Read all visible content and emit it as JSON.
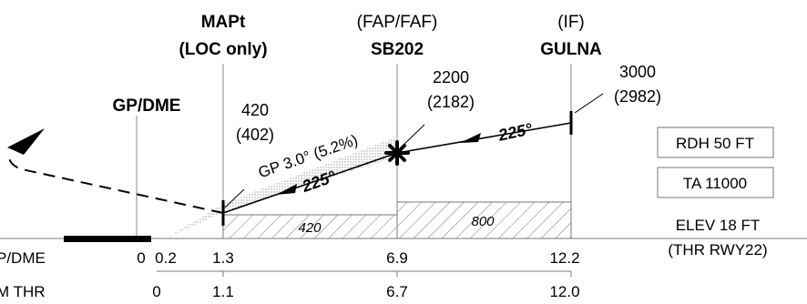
{
  "fixes": {
    "mapt": {
      "title": "MAPt",
      "subtitle": "(LOC only)",
      "alt": "420",
      "alt_hat": "(402)"
    },
    "faf": {
      "role": "(FAP/FAF)",
      "name": "SB202",
      "alt": "2200",
      "alt_hat": "(2182)"
    },
    "if": {
      "role": "(IF)",
      "name": "GULNA",
      "alt": "3000",
      "alt_hat": "(2982)"
    },
    "gp_dme": {
      "label": "GP/DME"
    }
  },
  "glidepath": {
    "label": "GP 3.0° (5.2%)",
    "course_final": "225°",
    "course_intermediate": "225°"
  },
  "minimum_altitudes": [
    "420",
    "800"
  ],
  "info_boxes": {
    "rdh": "RDH 50 FT",
    "ta": "TA 11000"
  },
  "elevation": {
    "elev": "ELEV 18 FT",
    "thr": "(THR RWY22)"
  },
  "distance_scales": {
    "gp_dme": {
      "label": "P/DME",
      "values": [
        "0",
        "0.2",
        "1.3",
        "6.9",
        "12.2"
      ]
    },
    "thr": {
      "label": "M THR",
      "values": [
        "0",
        "1.1",
        "6.7",
        "12.0"
      ]
    }
  },
  "colors": {
    "ink": "#000000",
    "grid": "#888888",
    "hatch": "#666666",
    "glidepath_shade": "#c8c8c8"
  }
}
